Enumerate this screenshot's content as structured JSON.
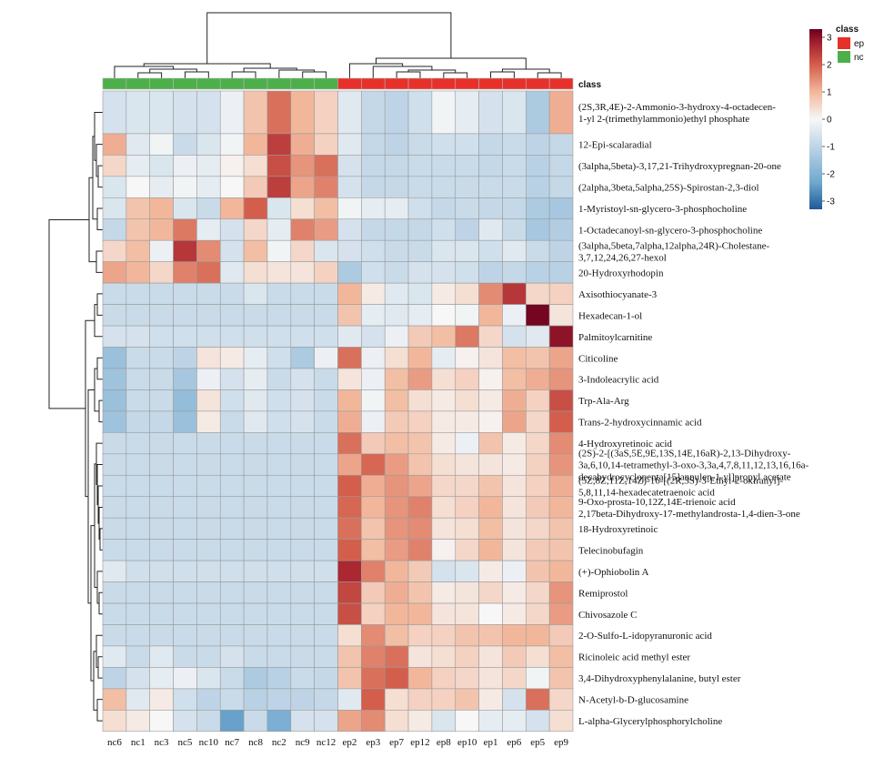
{
  "chart_data": {
    "type": "heatmap",
    "columns": [
      "nc6",
      "nc1",
      "nc3",
      "nc5",
      "nc10",
      "nc7",
      "nc8",
      "nc2",
      "nc9",
      "nc12",
      "ep2",
      "ep3",
      "ep7",
      "ep12",
      "ep8",
      "ep10",
      "ep1",
      "ep6",
      "ep5",
      "ep9"
    ],
    "column_classes": [
      "nc",
      "nc",
      "nc",
      "nc",
      "nc",
      "nc",
      "nc",
      "nc",
      "nc",
      "nc",
      "ep",
      "ep",
      "ep",
      "ep",
      "ep",
      "ep",
      "ep",
      "ep",
      "ep",
      "ep"
    ],
    "class_annotation_label": "class",
    "rows": [
      {
        "label": [
          "(2S,3R,4E)-2-Ammonio-3-hydroxy-4-octadecen-",
          "1-yl 2-(trimethylammonio)ethyl phosphate"
        ],
        "values": [
          -0.6,
          -0.5,
          -0.5,
          -0.6,
          -0.6,
          -0.2,
          0.8,
          1.8,
          1.0,
          0.6,
          -0.4,
          -0.9,
          -1.0,
          -0.7,
          -0.1,
          -0.3,
          -0.6,
          -0.5,
          -1.3,
          1.1
        ]
      },
      {
        "label": [
          "12-Epi-scalaradial"
        ],
        "values": [
          1.1,
          -0.4,
          -0.1,
          -0.8,
          -0.5,
          -0.1,
          1.0,
          2.4,
          1.1,
          0.6,
          -0.4,
          -0.9,
          -1.0,
          -0.8,
          -0.7,
          -0.7,
          -0.9,
          -0.8,
          -1.0,
          -0.9
        ]
      },
      {
        "label": [
          "(3alpha,5beta)-3,17,21-Trihydroxypregnan-20-one"
        ],
        "values": [
          0.5,
          -0.3,
          -0.5,
          -0.2,
          -0.3,
          0.1,
          0.4,
          2.2,
          1.4,
          1.8,
          -0.6,
          -0.9,
          -0.9,
          -0.8,
          -0.8,
          -0.8,
          -0.9,
          -0.8,
          -1.1,
          -0.9
        ]
      },
      {
        "label": [
          "(2alpha,3beta,5alpha,25S)-Spirostan-2,3-diol"
        ],
        "values": [
          -0.5,
          0.0,
          -0.3,
          -0.1,
          -0.3,
          0.0,
          0.7,
          2.4,
          1.2,
          1.6,
          -0.6,
          -0.9,
          -0.9,
          -0.8,
          -0.8,
          -0.8,
          -0.8,
          -0.8,
          -1.1,
          -0.9
        ]
      },
      {
        "label": [
          "1-Myristoyl-sn-glycero-3-phosphocholine"
        ],
        "values": [
          -0.5,
          0.8,
          1.0,
          -0.5,
          -0.8,
          1.0,
          2.0,
          -0.5,
          0.4,
          0.9,
          -0.1,
          -0.3,
          -0.3,
          -0.7,
          -0.9,
          -0.8,
          -0.9,
          -0.9,
          -1.3,
          -1.4
        ]
      },
      {
        "label": [
          "1-Octadecanoyl-sn-glycero-3-phosphocholine"
        ],
        "values": [
          -0.9,
          0.8,
          1.0,
          1.7,
          -0.3,
          -0.6,
          0.5,
          -0.3,
          1.6,
          1.3,
          -0.6,
          -0.9,
          -0.9,
          -0.9,
          -0.7,
          -1.0,
          -0.4,
          -0.8,
          -1.4,
          -1.2
        ]
      },
      {
        "label": [
          "(3alpha,5beta,7alpha,12alpha,24R)-Cholestane-",
          "3,7,12,24,26,27-hexol"
        ],
        "values": [
          0.5,
          0.9,
          -0.2,
          2.5,
          1.5,
          -0.6,
          0.9,
          -0.1,
          0.5,
          -0.5,
          -0.6,
          -0.7,
          -0.8,
          -0.8,
          -0.5,
          -0.5,
          -0.7,
          -0.4,
          -0.8,
          -1.0
        ]
      },
      {
        "label": [
          "20-Hydroxyrhodopin"
        ],
        "values": [
          1.2,
          1.0,
          0.5,
          1.6,
          1.8,
          -0.4,
          0.4,
          0.3,
          0.3,
          0.6,
          -1.3,
          -0.7,
          -0.8,
          -0.6,
          -0.6,
          -0.7,
          -1.0,
          -0.9,
          -1.1,
          -1.1
        ]
      },
      {
        "label": [
          "Axisothiocyanate-3"
        ],
        "values": [
          -0.8,
          -0.8,
          -0.8,
          -0.8,
          -0.8,
          -0.8,
          -0.5,
          -0.8,
          -0.8,
          -0.8,
          1.0,
          0.2,
          -0.4,
          -0.5,
          0.2,
          0.4,
          1.5,
          2.5,
          0.5,
          0.6
        ]
      },
      {
        "label": [
          "Hexadecan-1-ol"
        ],
        "values": [
          -0.8,
          -0.8,
          -0.8,
          -0.8,
          -0.8,
          -0.8,
          -0.8,
          -0.8,
          -0.8,
          -0.8,
          0.8,
          -0.3,
          -0.4,
          -0.3,
          0.0,
          -0.1,
          1.0,
          -0.2,
          3.2,
          0.3
        ]
      },
      {
        "label": [
          "Palmitoylcarnitine"
        ],
        "values": [
          -0.6,
          -0.6,
          -0.7,
          -0.7,
          -0.7,
          -0.7,
          -0.7,
          -0.7,
          -0.7,
          -0.7,
          -0.4,
          -0.6,
          -0.2,
          0.7,
          0.9,
          1.7,
          0.5,
          -0.6,
          -0.4,
          3.0
        ]
      },
      {
        "label": [
          "Citicoline"
        ],
        "values": [
          -1.6,
          -0.8,
          -0.8,
          -1.0,
          0.3,
          0.2,
          -0.3,
          -0.7,
          -1.3,
          -0.2,
          1.8,
          -0.2,
          0.4,
          1.0,
          -0.3,
          0.1,
          0.3,
          0.9,
          0.8,
          1.2
        ]
      },
      {
        "label": [
          "3-Indoleacrylic acid"
        ],
        "values": [
          -1.5,
          -0.8,
          -0.8,
          -1.4,
          -0.2,
          -0.6,
          -0.3,
          -0.8,
          -0.6,
          -0.8,
          0.3,
          -0.2,
          0.9,
          1.3,
          0.4,
          0.6,
          0.1,
          0.9,
          1.1,
          1.4
        ]
      },
      {
        "label": [
          "Trp-Ala-Arg"
        ],
        "values": [
          -1.6,
          -0.8,
          -0.8,
          -1.7,
          0.3,
          -0.7,
          -0.4,
          -0.7,
          -0.6,
          -0.8,
          1.0,
          -0.1,
          0.9,
          0.4,
          0.2,
          0.4,
          0.2,
          1.1,
          0.6,
          2.2
        ]
      },
      {
        "label": [
          "Trans-2-hydroxycinnamic acid"
        ],
        "values": [
          -1.5,
          -0.9,
          -0.9,
          -1.6,
          0.2,
          -0.8,
          -0.4,
          -0.7,
          -0.6,
          -0.8,
          1.1,
          -0.2,
          0.7,
          0.6,
          0.2,
          0.2,
          0.1,
          1.2,
          0.5,
          2.0
        ]
      },
      {
        "label": [
          "4-Hydroxyretinoic acid"
        ],
        "values": [
          -0.8,
          -0.8,
          -0.8,
          -0.8,
          -0.8,
          -0.8,
          -0.8,
          -0.8,
          -0.8,
          -0.8,
          1.8,
          0.7,
          0.9,
          0.8,
          0.2,
          -0.2,
          0.8,
          0.2,
          0.5,
          1.5
        ]
      },
      {
        "label": [
          "(2S)-2-[(3aS,5E,9E,13S,14E,16aR)-2,13-Dihydroxy-",
          "3a,6,10,14-tetramethyl-3-oxo-3,3a,4,7,8,11,12,13,16,16a-",
          "decahydrocyclopenta[15]annulen-1-yl]propyl acetate"
        ],
        "values": [
          -0.8,
          -0.8,
          -0.8,
          -0.8,
          -0.8,
          -0.8,
          -0.8,
          -0.8,
          -0.8,
          -0.8,
          1.2,
          1.9,
          1.3,
          0.8,
          0.4,
          0.3,
          0.3,
          0.2,
          0.6,
          1.4
        ]
      },
      {
        "label": [
          "(5Z,8Z,11Z,14Z)-16-[(2R,3S)-3-Ethyl-2-oxiranyl]-",
          "5,8,11,14-hexadecatetraenoic acid"
        ],
        "values": [
          -0.8,
          -0.8,
          -0.8,
          -0.8,
          -0.8,
          -0.8,
          -0.8,
          -0.8,
          -0.8,
          -0.8,
          2.0,
          1.1,
          1.4,
          1.2,
          0.5,
          0.5,
          0.8,
          0.3,
          0.6,
          1.1
        ]
      },
      {
        "label": [
          "9-Oxo-prosta-10,12Z,14E-trienoic acid",
          "2,17beta-Dihydroxy-17-methylandrosta-1,4-dien-3-one"
        ],
        "values": [
          -0.8,
          -0.8,
          -0.8,
          -0.8,
          -0.8,
          -0.8,
          -0.8,
          -0.8,
          -0.8,
          -0.8,
          1.9,
          1.0,
          1.4,
          1.6,
          0.4,
          0.6,
          1.0,
          0.3,
          0.7,
          1.0
        ]
      },
      {
        "label": [
          "18-Hydroxyretinoic"
        ],
        "values": [
          -0.8,
          -0.8,
          -0.8,
          -0.8,
          -0.8,
          -0.8,
          -0.8,
          -0.8,
          -0.8,
          -0.8,
          1.8,
          0.8,
          1.4,
          1.5,
          0.3,
          0.4,
          0.9,
          0.3,
          0.5,
          0.8
        ]
      },
      {
        "label": [
          "Telecinobufagin"
        ],
        "values": [
          -0.8,
          -0.8,
          -0.8,
          -0.8,
          -0.8,
          -0.8,
          -0.8,
          -0.8,
          -0.8,
          -0.8,
          2.0,
          0.9,
          1.3,
          1.6,
          0.1,
          0.5,
          1.0,
          0.3,
          0.7,
          0.8
        ]
      },
      {
        "label": [
          "(+)-Ophiobolin A"
        ],
        "values": [
          -0.4,
          -0.7,
          -0.7,
          -0.7,
          -0.7,
          -0.7,
          -0.7,
          -0.7,
          -0.7,
          -0.7,
          2.7,
          1.6,
          1.0,
          0.7,
          -0.6,
          -0.5,
          0.2,
          -0.2,
          0.8,
          1.0
        ]
      },
      {
        "label": [
          "Remiprostol"
        ],
        "values": [
          -0.8,
          -0.8,
          -0.8,
          -0.8,
          -0.8,
          -0.8,
          -0.8,
          -0.8,
          -0.8,
          -0.8,
          2.3,
          0.7,
          1.1,
          0.8,
          0.2,
          0.3,
          0.5,
          0.2,
          0.5,
          1.4
        ]
      },
      {
        "label": [
          "Chivosazole C"
        ],
        "values": [
          -0.8,
          -0.8,
          -0.8,
          -0.8,
          -0.8,
          -0.8,
          -0.8,
          -0.8,
          -0.8,
          -0.8,
          2.2,
          0.6,
          1.0,
          1.0,
          0.3,
          0.3,
          0.0,
          0.2,
          0.5,
          1.3
        ]
      },
      {
        "label": [
          "2-O-Sulfo-L-idopyranuronic acid"
        ],
        "values": [
          -0.8,
          -0.8,
          -0.8,
          -0.8,
          -0.8,
          -0.8,
          -0.8,
          -0.8,
          -0.8,
          -0.8,
          0.4,
          1.5,
          0.9,
          0.6,
          0.6,
          0.8,
          0.8,
          1.0,
          1.0,
          0.7
        ]
      },
      {
        "label": [
          "Ricinoleic acid methyl ester"
        ],
        "values": [
          -0.4,
          -0.8,
          -0.4,
          -0.8,
          -0.8,
          -0.6,
          -0.8,
          -0.8,
          -0.8,
          -0.8,
          0.8,
          1.6,
          1.8,
          0.3,
          0.4,
          0.6,
          0.3,
          0.7,
          0.4,
          0.9
        ]
      },
      {
        "label": [
          "3,4-Dihydroxyphenylalanine, butyl ester"
        ],
        "values": [
          -1.0,
          -0.6,
          -0.3,
          -0.2,
          -0.5,
          -0.8,
          -1.3,
          -1.1,
          -0.8,
          -0.9,
          0.8,
          1.8,
          2.0,
          1.0,
          0.6,
          0.5,
          0.3,
          0.5,
          -0.1,
          0.8
        ]
      },
      {
        "label": [
          "N-Acetyl-b-D-glucosamine"
        ],
        "values": [
          0.9,
          -0.4,
          0.2,
          -0.7,
          -1.0,
          -0.8,
          -1.1,
          -1.0,
          -1.0,
          -0.9,
          -0.4,
          2.0,
          0.4,
          0.6,
          0.6,
          0.8,
          0.2,
          -0.6,
          1.8,
          0.5
        ]
      },
      {
        "label": [
          "L-alpha-Glycerylphosphorylcholine"
        ],
        "values": [
          0.4,
          0.2,
          0.0,
          -0.6,
          -0.8,
          -2.4,
          -0.8,
          -2.1,
          -0.6,
          -0.6,
          1.2,
          1.5,
          0.4,
          0.2,
          -0.5,
          0.0,
          -0.3,
          -0.3,
          -0.6,
          0.4
        ]
      }
    ],
    "row_heights": [
      2,
      1,
      1,
      1,
      1,
      1,
      1,
      1,
      1,
      1,
      1,
      1,
      1,
      1,
      1,
      1,
      1,
      1,
      1,
      1,
      1,
      1,
      1,
      1,
      1,
      1,
      1,
      1,
      1
    ],
    "color_scale": {
      "min": -3.3,
      "max": 3.3,
      "low": "#1f5a97",
      "mid": "#f7f7f7",
      "high": "#67001f",
      "ticks": [
        3,
        2,
        1,
        0,
        -1,
        -2,
        -3
      ]
    },
    "legend": {
      "title": "class",
      "entries": [
        {
          "name": "ep",
          "color": "#e8302b"
        },
        {
          "name": "nc",
          "color": "#4daf4a"
        }
      ]
    }
  }
}
